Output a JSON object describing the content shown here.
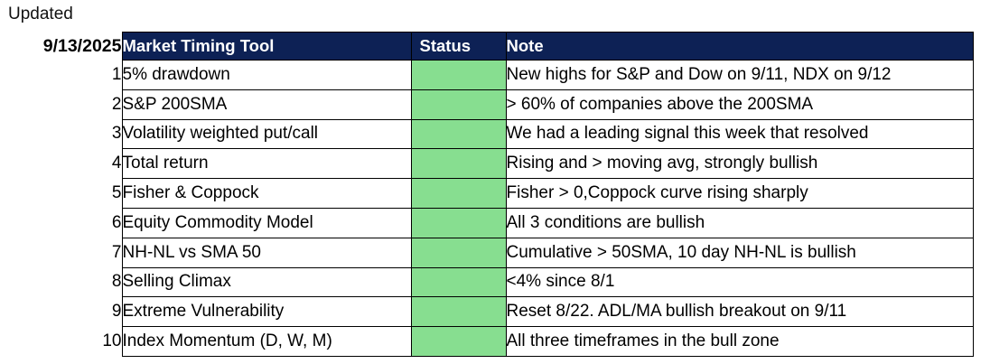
{
  "updated_label": "Updated",
  "updated_date": "9/13/2025",
  "colors": {
    "header_bg": "#0D2155",
    "header_text": "#FFFFFF",
    "status_green": "#87DE90",
    "border": "#000000"
  },
  "table": {
    "headers": {
      "tool": "Market Timing Tool",
      "status": "Status",
      "note": "Note"
    },
    "rows": [
      {
        "num": "1",
        "tool": "5% drawdown",
        "status": "green",
        "note": "New highs for S&P and Dow on 9/11, NDX on 9/12"
      },
      {
        "num": "2",
        "tool": "S&P 200SMA",
        "status": "green",
        "note": "> 60% of companies above the 200SMA"
      },
      {
        "num": "3",
        "tool": "Volatility weighted put/call",
        "status": "green",
        "note": "We had a leading signal this week that resolved"
      },
      {
        "num": "4",
        "tool": "Total return",
        "status": "green",
        "note": "Rising and > moving avg, strongly bullish"
      },
      {
        "num": "5",
        "tool": "Fisher & Coppock",
        "status": "green",
        "note": "Fisher > 0,Coppock curve rising sharply"
      },
      {
        "num": "6",
        "tool": "Equity Commodity Model",
        "status": "green",
        "note": "All 3 conditions are bullish"
      },
      {
        "num": "7",
        "tool": "NH-NL vs SMA 50",
        "status": "green",
        "note": "Cumulative > 50SMA, 10 day NH-NL is bullish"
      },
      {
        "num": "8",
        "tool": "Selling Climax",
        "status": "green",
        "note": "<4% since 8/1"
      },
      {
        "num": "9",
        "tool": "Extreme Vulnerability",
        "status": "green",
        "note": "Reset 8/22. ADL/MA bullish breakout on 9/11"
      },
      {
        "num": "10",
        "tool": "Index Momentum (D, W, M)",
        "status": "green",
        "note": "All three timeframes in the bull zone"
      }
    ]
  }
}
